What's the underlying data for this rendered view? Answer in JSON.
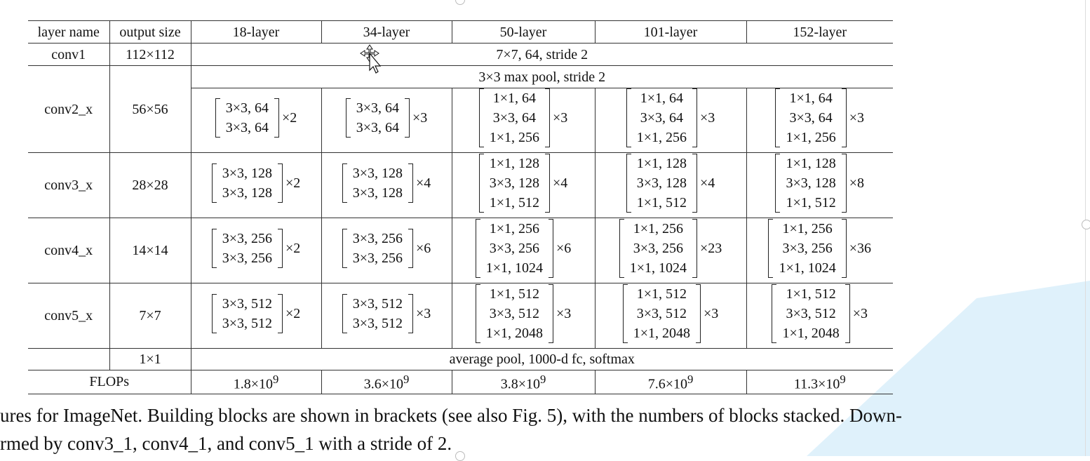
{
  "table": {
    "header": [
      "layer name",
      "output size",
      "18-layer",
      "34-layer",
      "50-layer",
      "101-layer",
      "152-layer"
    ],
    "conv1": {
      "name": "conv1",
      "size": "112×112",
      "spec": "7×7, 64, stride 2"
    },
    "maxpool": "3×3 max pool, stride 2",
    "blocks": [
      {
        "name": "conv2_x",
        "size": "56×56",
        "cells": [
          {
            "lines": [
              "3×3, 64",
              "3×3, 64"
            ],
            "mult": "×2"
          },
          {
            "lines": [
              "3×3, 64",
              "3×3, 64"
            ],
            "mult": "×3"
          },
          {
            "lines": [
              "1×1, 64",
              "3×3, 64",
              "1×1, 256"
            ],
            "mult": "×3"
          },
          {
            "lines": [
              "1×1, 64",
              "3×3, 64",
              "1×1, 256"
            ],
            "mult": "×3"
          },
          {
            "lines": [
              "1×1, 64",
              "3×3, 64",
              "1×1, 256"
            ],
            "mult": "×3"
          }
        ]
      },
      {
        "name": "conv3_x",
        "size": "28×28",
        "cells": [
          {
            "lines": [
              "3×3, 128",
              "3×3, 128"
            ],
            "mult": "×2"
          },
          {
            "lines": [
              "3×3, 128",
              "3×3, 128"
            ],
            "mult": "×4"
          },
          {
            "lines": [
              "1×1, 128",
              "3×3, 128",
              "1×1, 512"
            ],
            "mult": "×4"
          },
          {
            "lines": [
              "1×1, 128",
              "3×3, 128",
              "1×1, 512"
            ],
            "mult": "×4"
          },
          {
            "lines": [
              "1×1, 128",
              "3×3, 128",
              "1×1, 512"
            ],
            "mult": "×8"
          }
        ]
      },
      {
        "name": "conv4_x",
        "size": "14×14",
        "cells": [
          {
            "lines": [
              "3×3, 256",
              "3×3, 256"
            ],
            "mult": "×2"
          },
          {
            "lines": [
              "3×3, 256",
              "3×3, 256"
            ],
            "mult": "×6"
          },
          {
            "lines": [
              "1×1, 256",
              "3×3, 256",
              "1×1, 1024"
            ],
            "mult": "×6"
          },
          {
            "lines": [
              "1×1, 256",
              "3×3, 256",
              "1×1, 1024"
            ],
            "mult": "×23"
          },
          {
            "lines": [
              "1×1, 256",
              "3×3, 256",
              "1×1, 1024"
            ],
            "mult": "×36"
          }
        ]
      },
      {
        "name": "conv5_x",
        "size": "7×7",
        "cells": [
          {
            "lines": [
              "3×3, 512",
              "3×3, 512"
            ],
            "mult": "×2"
          },
          {
            "lines": [
              "3×3, 512",
              "3×3, 512"
            ],
            "mult": "×3"
          },
          {
            "lines": [
              "1×1, 512",
              "3×3, 512",
              "1×1, 2048"
            ],
            "mult": "×3"
          },
          {
            "lines": [
              "1×1, 512",
              "3×3, 512",
              "1×1, 2048"
            ],
            "mult": "×3"
          },
          {
            "lines": [
              "1×1, 512",
              "3×3, 512",
              "1×1, 2048"
            ],
            "mult": "×3"
          }
        ]
      }
    ],
    "final": {
      "size": "1×1",
      "spec": "average pool, 1000-d fc, softmax"
    },
    "flops": {
      "label": "FLOPs",
      "values": [
        "1.8×10",
        "3.6×10",
        "3.8×10",
        "7.6×10",
        "11.3×10"
      ],
      "exp": "9"
    }
  },
  "caption": {
    "line1": "ures for ImageNet. Building blocks are shown in brackets (see also Fig. 5), with the numbers of blocks stacked. Down-",
    "line2": "rmed by conv3_1, conv4_1, and conv5_1 with a stride of 2."
  },
  "icons": {
    "cursor": "move-cursor-icon"
  }
}
